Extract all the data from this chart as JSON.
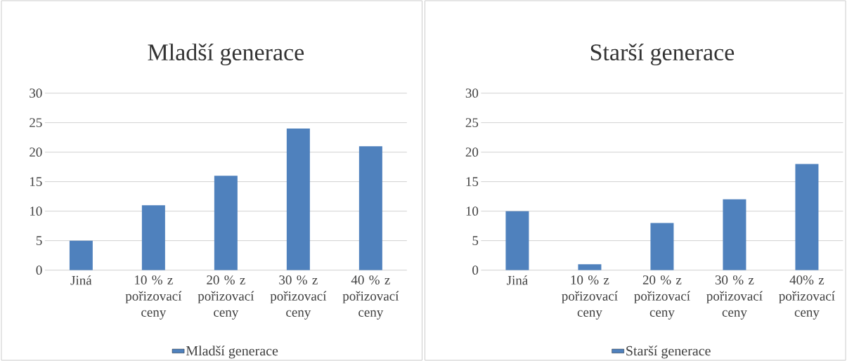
{
  "chart_data": [
    {
      "type": "bar",
      "title": "Mladší generace",
      "categories": [
        "Jiná",
        "10 % z pořizovací ceny",
        "20 % z pořizovací ceny",
        "30 % z pořizovací ceny",
        "40 % z pořizovací ceny"
      ],
      "series": [
        {
          "name": "Mladší generace",
          "color": "#4f81bd",
          "values": [
            5,
            11,
            16,
            24,
            21
          ]
        }
      ],
      "ylim": [
        0,
        30
      ],
      "yticks": [
        0,
        5,
        10,
        15,
        20,
        25,
        30
      ],
      "grid": "y",
      "legend": "bottom"
    },
    {
      "type": "bar",
      "title": "Starší generace",
      "categories": [
        "Jiná",
        "10 % z pořizovací ceny",
        "20 % z pořizovací ceny",
        "30 % z pořizovací ceny",
        "40% z pořizovací ceny"
      ],
      "series": [
        {
          "name": "Starší generace",
          "color": "#4f81bd",
          "values": [
            10,
            1,
            8,
            12,
            18
          ]
        }
      ],
      "ylim": [
        0,
        30
      ],
      "yticks": [
        0,
        5,
        10,
        15,
        20,
        25,
        30
      ],
      "grid": "y",
      "legend": "bottom"
    }
  ]
}
